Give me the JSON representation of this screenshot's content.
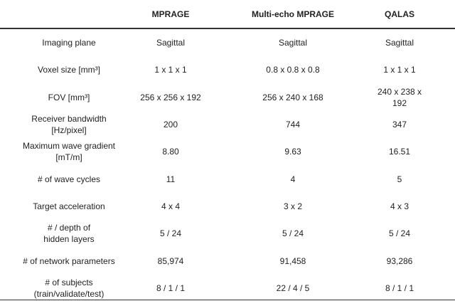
{
  "table": {
    "header": [
      "MPRAGE",
      "Multi-echo MPRAGE",
      "QALAS"
    ],
    "rows": [
      [
        "Imaging plane",
        "Sagittal",
        "Sagittal",
        "Sagittal"
      ],
      [
        "Voxel size [mm³]",
        "1 x 1 x 1",
        "0.8 x 0.8 x 0.8",
        "1 x 1 x 1"
      ],
      [
        "FOV [mm³]",
        "256 x 256 x 192",
        "256 x 240 x 168",
        "240 x 238 x 192"
      ],
      [
        "Receiver bandwidth\n[Hz/pixel]",
        "200",
        "744",
        "347"
      ],
      [
        "Maximum wave gradient\n[mT/m]",
        "8.80",
        "9.63",
        "16.51"
      ],
      [
        "# of wave cycles",
        "11",
        "4",
        "5"
      ],
      [
        "Target acceleration",
        "4 x 4",
        "3 x 2",
        "4 x 3"
      ],
      [
        "# / depth of\nhidden layers",
        "5 / 24",
        "5 / 24",
        "5 / 24"
      ],
      [
        "# of network parameters",
        "85,974",
        "91,458",
        "93,286"
      ],
      [
        "# of subjects\n(train/validate/test)",
        "8 / 1 / 1",
        "22 / 4 / 5",
        "8 / 1 / 1"
      ]
    ]
  }
}
